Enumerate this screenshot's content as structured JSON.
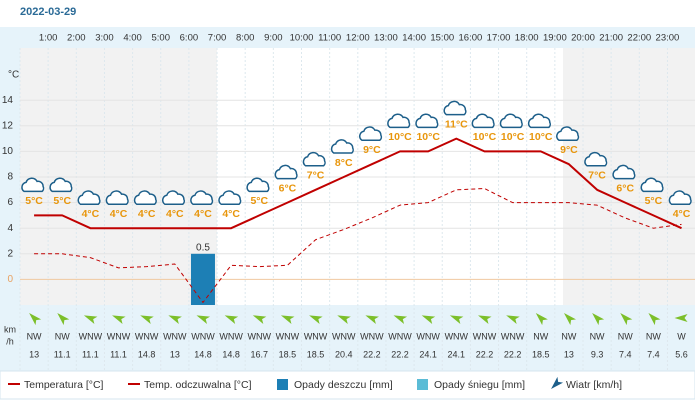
{
  "chart_data": {
    "type": "line",
    "title": "2022-03-29",
    "y_unit": "°C",
    "categories": [
      null,
      "1:00",
      "2:00",
      "3:00",
      "4:00",
      "5:00",
      "6:00",
      "7:00",
      "8:00",
      "9:00",
      "10:00",
      "11:00",
      "12:00",
      "13:00",
      "14:00",
      "15:00",
      "16:00",
      "17:00",
      "18:00",
      "19:00",
      "20:00",
      "21:00",
      "22:00",
      "23:00"
    ],
    "ylim": [
      -2,
      18
    ],
    "yticks": [
      0,
      2,
      4,
      6,
      8,
      10,
      12,
      14
    ],
    "y2lim": [
      0,
      2.5
    ],
    "grid": true,
    "series": [
      {
        "name": "Temperatura [°C]",
        "color": "#c00000",
        "style": "solid",
        "values": [
          5,
          5,
          4,
          4,
          4,
          4,
          4,
          4,
          5,
          6,
          7,
          8,
          9,
          10,
          10,
          11,
          10,
          10,
          10,
          9,
          7,
          6,
          5,
          4
        ],
        "value_labels": [
          "5°C",
          "5°C",
          "4°C",
          "4°C",
          "4°C",
          "4°C",
          "4°C",
          "4°C",
          "5°C",
          "6°C",
          "7°C",
          "8°C",
          "9°C",
          "10°C",
          "10°C",
          "11°C",
          "10°C",
          "10°C",
          "10°C",
          "9°C",
          "7°C",
          "6°C",
          "5°C",
          "4°C"
        ]
      },
      {
        "name": "Temp. odczuwalna [°C]",
        "color": "#c00000",
        "style": "dashed",
        "values": [
          2.0,
          2.0,
          1.7,
          0.9,
          1.0,
          1.2,
          -1.8,
          1.1,
          1.0,
          1.1,
          3.1,
          3.9,
          4.8,
          5.8,
          6.0,
          7.0,
          7.1,
          6.0,
          6.0,
          6.0,
          5.8,
          4.8,
          4.0,
          4.3
        ]
      },
      {
        "name": "Opady deszczu [mm]",
        "color": "#1d7fb5",
        "type": "bar",
        "axis": "y2",
        "values": [
          0,
          0,
          0,
          0,
          0,
          0,
          0.5,
          0,
          0,
          0,
          0,
          0,
          0,
          0,
          0,
          0,
          0,
          0,
          0,
          0,
          0,
          0,
          0,
          0
        ]
      },
      {
        "name": "Opady śniegu [mm]",
        "color": "#5bbcd6",
        "type": "bar",
        "axis": "y2",
        "values": [
          0,
          0,
          0,
          0,
          0,
          0,
          0,
          0,
          0,
          0,
          0,
          0,
          0,
          0,
          0,
          0,
          0,
          0,
          0,
          0,
          0,
          0,
          0,
          0
        ]
      }
    ],
    "wind": {
      "name": "Wiatr [km/h]",
      "unit_lines": [
        "km",
        "/h"
      ],
      "color": "#7cbf2a",
      "directions": [
        "NW",
        "NW",
        "WNW",
        "WNW",
        "WNW",
        "WNW",
        "WNW",
        "WNW",
        "WNW",
        "WNW",
        "WNW",
        "WNW",
        "WNW",
        "WNW",
        "WNW",
        "WNW",
        "WNW",
        "WNW",
        "NW",
        "NW",
        "NW",
        "NW",
        "NW",
        "W"
      ],
      "values": [
        13,
        11.1,
        11.1,
        11.1,
        14.8,
        13,
        14.8,
        14.8,
        16.7,
        18.5,
        18.5,
        20.4,
        22.2,
        22.2,
        24.1,
        24.1,
        22.2,
        22.2,
        18.5,
        13,
        9.3,
        7.4,
        7.4,
        5.6
      ]
    }
  }
}
